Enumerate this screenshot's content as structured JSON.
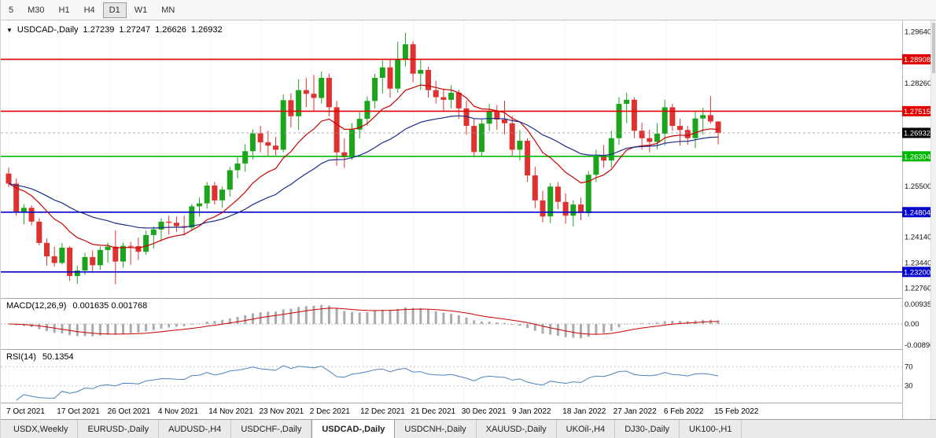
{
  "colors": {
    "bull": "#1ca51c",
    "bear": "#e03131",
    "ma_fast": "#cc0000",
    "ma_slow": "#1c2e8c",
    "macd_hist": "#ababab",
    "macd_signal": "#cc0000",
    "rsi": "#4f81bd",
    "grid": "#dedede",
    "axis_text": "#111111",
    "badge_text": "#ffffff"
  },
  "toolbar": {
    "timeframes": [
      {
        "label": "5",
        "active": false
      },
      {
        "label": "M30",
        "active": false
      },
      {
        "label": "H1",
        "active": false
      },
      {
        "label": "H4",
        "active": false
      },
      {
        "label": "D1",
        "active": true
      },
      {
        "label": "W1",
        "active": false
      },
      {
        "label": "MN",
        "active": false
      }
    ]
  },
  "chart": {
    "dropdown_icon": "▼",
    "symbol_label": "USDCAD-,Daily",
    "ohlc": {
      "open": "1.27239",
      "high": "1.27247",
      "low": "1.26626",
      "close": "1.26932"
    },
    "current_price": {
      "label": "1.26932",
      "value": 1.26932,
      "color": "#000000"
    },
    "y_axis_labels": [
      {
        "text": "1.29640",
        "value": 1.2964
      },
      {
        "text": "1.28260",
        "value": 1.2826
      },
      {
        "text": "1.25500",
        "value": 1.255
      },
      {
        "text": "1.24140",
        "value": 1.2414
      },
      {
        "text": "1.23440",
        "value": 1.2344
      },
      {
        "text": "1.22760",
        "value": 1.2276
      }
    ],
    "hlines": [
      {
        "label": "1.28908",
        "value": 1.28908,
        "color": "#e00000"
      },
      {
        "label": "1.27515",
        "value": 1.27515,
        "color": "#e00000"
      },
      {
        "label": "1.26304",
        "value": 1.26304,
        "color": "#00b800"
      },
      {
        "label": "1.24804",
        "value": 1.24804,
        "color": "#0000cd"
      },
      {
        "label": "1.23200",
        "value": 1.232,
        "color": "#0000cd"
      }
    ],
    "dates": [
      "7 Oct 2021",
      "17 Oct 2021",
      "26 Oct 2021",
      "4 Nov 2021",
      "14 Nov 2021",
      "23 Nov 2021",
      "2 Dec 2021",
      "12 Dec 2021",
      "21 Dec 2021",
      "30 Dec 2021",
      "9 Jan 2022",
      "18 Jan 2022",
      "27 Jan 2022",
      "6 Feb 2022",
      "15 Feb 2022"
    ]
  },
  "chart_data": {
    "type": "candlestick",
    "symbol": "USDCAD",
    "timeframe": "Daily",
    "price_range": {
      "min": 1.225,
      "max": 1.2995
    },
    "candles": [
      [
        "2021-10-07",
        1.2584,
        1.2601,
        1.2548,
        1.2557
      ],
      [
        "2021-10-08",
        1.2557,
        1.2571,
        1.2471,
        1.2482
      ],
      [
        "2021-10-11",
        1.2482,
        1.2502,
        1.2448,
        1.2492
      ],
      [
        "2021-10-12",
        1.2492,
        1.2499,
        1.2445,
        1.2455
      ],
      [
        "2021-10-13",
        1.2455,
        1.2464,
        1.2391,
        1.2398
      ],
      [
        "2021-10-14",
        1.2398,
        1.241,
        1.2337,
        1.2362
      ],
      [
        "2021-10-15",
        1.2362,
        1.2388,
        1.2335,
        1.2344
      ],
      [
        "2021-10-18",
        1.2344,
        1.2397,
        1.234,
        1.2385
      ],
      [
        "2021-10-19",
        1.2385,
        1.2389,
        1.2296,
        1.2309
      ],
      [
        "2021-10-20",
        1.2309,
        1.2337,
        1.2288,
        1.2324
      ],
      [
        "2021-10-21",
        1.2324,
        1.2371,
        1.2312,
        1.236
      ],
      [
        "2021-10-22",
        1.236,
        1.2378,
        1.2317,
        1.2338
      ],
      [
        "2021-10-25",
        1.2338,
        1.2388,
        1.2326,
        1.2379
      ],
      [
        "2021-10-26",
        1.2379,
        1.2399,
        1.2345,
        1.2388
      ],
      [
        "2021-10-27",
        1.2388,
        1.2432,
        1.2287,
        1.2348
      ],
      [
        "2021-10-28",
        1.2348,
        1.2399,
        1.2331,
        1.239
      ],
      [
        "2021-10-29",
        1.239,
        1.2401,
        1.2339,
        1.2389
      ],
      [
        "2021-11-01",
        1.2389,
        1.2412,
        1.2352,
        1.2374
      ],
      [
        "2021-11-02",
        1.2374,
        1.2431,
        1.2366,
        1.2419
      ],
      [
        "2021-11-03",
        1.2419,
        1.2442,
        1.2383,
        1.2434
      ],
      [
        "2021-11-04",
        1.2434,
        1.2464,
        1.2402,
        1.2455
      ],
      [
        "2021-11-05",
        1.2455,
        1.2471,
        1.2421,
        1.2452
      ],
      [
        "2021-11-08",
        1.2452,
        1.2469,
        1.2427,
        1.2443
      ],
      [
        "2021-11-09",
        1.2443,
        1.2471,
        1.2418,
        1.2439
      ],
      [
        "2021-11-10",
        1.2439,
        1.2502,
        1.2432,
        1.2496
      ],
      [
        "2021-11-11",
        1.2496,
        1.252,
        1.2469,
        1.2504
      ],
      [
        "2021-11-12",
        1.2504,
        1.2561,
        1.249,
        1.2552
      ],
      [
        "2021-11-15",
        1.2552,
        1.2562,
        1.2501,
        1.2512
      ],
      [
        "2021-11-16",
        1.2512,
        1.2549,
        1.2493,
        1.2541
      ],
      [
        "2021-11-17",
        1.2541,
        1.2602,
        1.2522,
        1.2593
      ],
      [
        "2021-11-18",
        1.2593,
        1.2628,
        1.2571,
        1.2611
      ],
      [
        "2021-11-19",
        1.2611,
        1.2663,
        1.2589,
        1.2644
      ],
      [
        "2021-11-22",
        1.2644,
        1.2702,
        1.2622,
        1.2692
      ],
      [
        "2021-11-23",
        1.2692,
        1.2712,
        1.2641,
        1.2668
      ],
      [
        "2021-11-24",
        1.2668,
        1.2699,
        1.2631,
        1.2659
      ],
      [
        "2021-11-25",
        1.2659,
        1.2682,
        1.2633,
        1.2648
      ],
      [
        "2021-11-26",
        1.2648,
        1.2797,
        1.2641,
        1.2781
      ],
      [
        "2021-11-29",
        1.2781,
        1.2799,
        1.2708,
        1.2738
      ],
      [
        "2021-11-30",
        1.2738,
        1.2837,
        1.2701,
        1.2808
      ],
      [
        "2021-12-01",
        1.2808,
        1.2841,
        1.2762,
        1.2798
      ],
      [
        "2021-12-02",
        1.2798,
        1.2849,
        1.2751,
        1.2787
      ],
      [
        "2021-12-03",
        1.2787,
        1.2858,
        1.2772,
        1.2841
      ],
      [
        "2021-12-06",
        1.2841,
        1.2852,
        1.2738,
        1.2762
      ],
      [
        "2021-12-07",
        1.2762,
        1.2779,
        1.2605,
        1.2641
      ],
      [
        "2021-12-08",
        1.2641,
        1.2679,
        1.2599,
        1.2628
      ],
      [
        "2021-12-09",
        1.2628,
        1.2719,
        1.2621,
        1.2702
      ],
      [
        "2021-12-10",
        1.2702,
        1.2749,
        1.2678,
        1.2731
      ],
      [
        "2021-12-13",
        1.2731,
        1.2791,
        1.2712,
        1.2779
      ],
      [
        "2021-12-14",
        1.2779,
        1.2852,
        1.2759,
        1.2841
      ],
      [
        "2021-12-15",
        1.2841,
        1.2888,
        1.2799,
        1.2869
      ],
      [
        "2021-12-16",
        1.2869,
        1.2891,
        1.2788,
        1.2812
      ],
      [
        "2021-12-17",
        1.2812,
        1.2938,
        1.2801,
        1.2891
      ],
      [
        "2021-12-20",
        1.2891,
        1.2962,
        1.2871,
        1.2931
      ],
      [
        "2021-12-21",
        1.2931,
        1.2939,
        1.2829,
        1.2852
      ],
      [
        "2021-12-22",
        1.2852,
        1.2889,
        1.2809,
        1.2862
      ],
      [
        "2021-12-23",
        1.2862,
        1.2871,
        1.2788,
        1.2808
      ],
      [
        "2021-12-24",
        1.2808,
        1.2833,
        1.2772,
        1.2789
      ],
      [
        "2021-12-27",
        1.2789,
        1.2812,
        1.2751,
        1.2782
      ],
      [
        "2021-12-28",
        1.2782,
        1.2821,
        1.2759,
        1.2801
      ],
      [
        "2021-12-29",
        1.2801,
        1.2809,
        1.2731,
        1.2759
      ],
      [
        "2021-12-30",
        1.2759,
        1.2779,
        1.2688,
        1.2712
      ],
      [
        "2021-12-31",
        1.2712,
        1.2731,
        1.2628,
        1.2642
      ],
      [
        "2022-01-03",
        1.2642,
        1.2729,
        1.2631,
        1.2718
      ],
      [
        "2022-01-04",
        1.2718,
        1.2771,
        1.2698,
        1.2752
      ],
      [
        "2022-01-05",
        1.2752,
        1.2768,
        1.2701,
        1.2729
      ],
      [
        "2022-01-06",
        1.2729,
        1.2779,
        1.2689,
        1.2719
      ],
      [
        "2022-01-07",
        1.2719,
        1.2739,
        1.2629,
        1.2648
      ],
      [
        "2022-01-10",
        1.2648,
        1.2701,
        1.2619,
        1.2672
      ],
      [
        "2022-01-11",
        1.2672,
        1.2679,
        1.2562,
        1.2579
      ],
      [
        "2022-01-12",
        1.2579,
        1.2602,
        1.2491,
        1.2512
      ],
      [
        "2022-01-13",
        1.2512,
        1.2538,
        1.2453,
        1.2469
      ],
      [
        "2022-01-14",
        1.2469,
        1.2558,
        1.2451,
        1.2549
      ],
      [
        "2022-01-17",
        1.2549,
        1.2561,
        1.2488,
        1.2508
      ],
      [
        "2022-01-18",
        1.2508,
        1.2531,
        1.2449,
        1.2471
      ],
      [
        "2022-01-19",
        1.2471,
        1.2512,
        1.2442,
        1.2501
      ],
      [
        "2022-01-20",
        1.2501,
        1.2519,
        1.2459,
        1.2478
      ],
      [
        "2022-01-21",
        1.2478,
        1.2591,
        1.2469,
        1.2581
      ],
      [
        "2022-01-24",
        1.2581,
        1.2648,
        1.2561,
        1.2632
      ],
      [
        "2022-01-25",
        1.2632,
        1.2661,
        1.2599,
        1.2619
      ],
      [
        "2022-01-26",
        1.2619,
        1.2699,
        1.2601,
        1.2679
      ],
      [
        "2022-01-27",
        1.2679,
        1.2789,
        1.2662,
        1.2771
      ],
      [
        "2022-01-28",
        1.2771,
        1.2801,
        1.2719,
        1.2782
      ],
      [
        "2022-01-31",
        1.2782,
        1.2789,
        1.2679,
        1.2699
      ],
      [
        "2022-02-01",
        1.2699,
        1.2721,
        1.2648,
        1.2679
      ],
      [
        "2022-02-02",
        1.2679,
        1.2702,
        1.2641,
        1.2669
      ],
      [
        "2022-02-03",
        1.2669,
        1.2719,
        1.2649,
        1.2691
      ],
      [
        "2022-02-04",
        1.2691,
        1.2782,
        1.2659,
        1.2762
      ],
      [
        "2022-02-07",
        1.2762,
        1.2771,
        1.2699,
        1.2712
      ],
      [
        "2022-02-08",
        1.2712,
        1.2731,
        1.2659,
        1.2701
      ],
      [
        "2022-02-09",
        1.2701,
        1.2712,
        1.2661,
        1.2679
      ],
      [
        "2022-02-10",
        1.2679,
        1.2752,
        1.2652,
        1.2732
      ],
      [
        "2022-02-11",
        1.2732,
        1.2761,
        1.2689,
        1.2741
      ],
      [
        "2022-02-14",
        1.2741,
        1.2792,
        1.2718,
        1.2724
      ],
      [
        "2022-02-15",
        1.27239,
        1.27247,
        1.26626,
        1.26932
      ]
    ],
    "moving_averages": [
      {
        "name": "fast",
        "period": 12,
        "color": "#cc0000"
      },
      {
        "name": "slow",
        "period": 32,
        "color": "#1c2e8c"
      }
    ],
    "indicators": {
      "macd": {
        "label": "MACD(12,26,9)",
        "values_text": "0.001635 0.001768",
        "fast": 12,
        "slow": 26,
        "signal": 9,
        "axis_labels": {
          "top": "0.00935",
          "zero": "0.00",
          "bottom": "-0.00890"
        }
      },
      "rsi": {
        "label": "RSI(14)",
        "value_text": "50.1354",
        "period": 14,
        "levels": [
          70,
          30
        ],
        "range": [
          0,
          100
        ]
      }
    }
  },
  "tabs": [
    {
      "label": "USDX,Weekly",
      "active": false
    },
    {
      "label": "EURUSD-,Daily",
      "active": false
    },
    {
      "label": "AUDUSD-,H4",
      "active": false
    },
    {
      "label": "USDCHF-,Daily",
      "active": false
    },
    {
      "label": "USDCAD-,Daily",
      "active": true
    },
    {
      "label": "USDCNH-,Daily",
      "active": false
    },
    {
      "label": "XAUUSD-,Daily",
      "active": false
    },
    {
      "label": "UKOil-,H4",
      "active": false
    },
    {
      "label": "DJ30-,Daily",
      "active": false
    },
    {
      "label": "UK100-,H1",
      "active": false
    }
  ]
}
